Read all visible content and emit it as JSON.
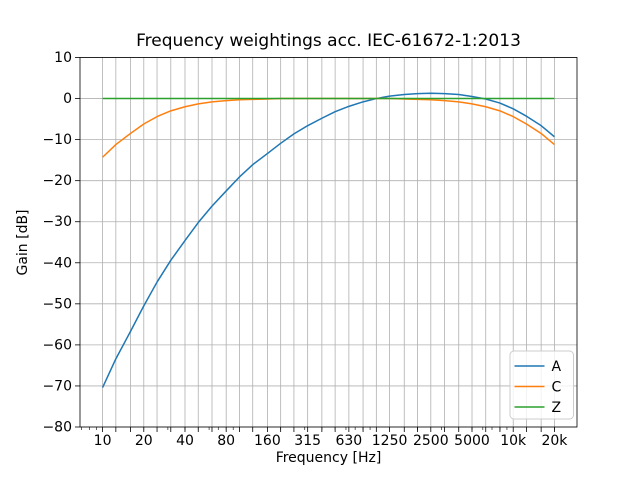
{
  "chart_data": {
    "type": "line",
    "title": "Frequency weightings acc. IEC-61672-1:2013",
    "xlabel": "Frequency [Hz]",
    "ylabel": "Gain [dB]",
    "x_scale": "log",
    "xlim_hz": [
      6.84,
      29245
    ],
    "ylim": [
      -80,
      10
    ],
    "grid": true,
    "legend_position": "lower right",
    "frequencies_hz": [
      10,
      12.5,
      16,
      20,
      25,
      31.5,
      40,
      50,
      63,
      80,
      100,
      125,
      160,
      200,
      250,
      315,
      400,
      500,
      630,
      800,
      1000,
      1250,
      1600,
      2000,
      2500,
      3150,
      4000,
      5000,
      6300,
      8000,
      10000,
      12500,
      16000,
      20000
    ],
    "series": [
      {
        "name": "A",
        "color": "#1f77b4",
        "values": [
          -70.4,
          -63.4,
          -56.7,
          -50.5,
          -44.7,
          -39.4,
          -34.6,
          -30.2,
          -26.2,
          -22.5,
          -19.1,
          -16.1,
          -13.4,
          -10.9,
          -8.6,
          -6.6,
          -4.8,
          -3.2,
          -1.9,
          -0.8,
          0.0,
          0.6,
          1.0,
          1.2,
          1.3,
          1.2,
          1.0,
          0.5,
          -0.1,
          -1.1,
          -2.5,
          -4.3,
          -6.6,
          -9.3
        ]
      },
      {
        "name": "C",
        "color": "#ff7f0e",
        "values": [
          -14.3,
          -11.2,
          -8.5,
          -6.2,
          -4.4,
          -3.0,
          -2.0,
          -1.3,
          -0.8,
          -0.5,
          -0.3,
          -0.2,
          -0.1,
          0.0,
          0.0,
          0.0,
          0.0,
          0.0,
          0.0,
          0.0,
          0.0,
          0.0,
          -0.1,
          -0.2,
          -0.3,
          -0.5,
          -0.8,
          -1.3,
          -2.0,
          -3.0,
          -4.4,
          -6.2,
          -8.5,
          -11.2
        ]
      },
      {
        "name": "Z",
        "color": "#2ca02c",
        "values": [
          0,
          0,
          0,
          0,
          0,
          0,
          0,
          0,
          0,
          0,
          0,
          0,
          0,
          0,
          0,
          0,
          0,
          0,
          0,
          0,
          0,
          0,
          0,
          0,
          0,
          0,
          0,
          0,
          0,
          0,
          0,
          0,
          0,
          0
        ]
      }
    ],
    "x_tick_freqs": [
      10,
      20,
      40,
      80,
      160,
      315,
      630,
      1250,
      2500,
      5000,
      10000,
      20000
    ],
    "x_tick_labels": [
      "10",
      "20",
      "40",
      "80",
      "160",
      "315",
      "630",
      "1250",
      "2500",
      "5000",
      "10k",
      "20k"
    ],
    "y_ticks": [
      10,
      0,
      -10,
      -20,
      -30,
      -40,
      -50,
      -60,
      -70,
      -80
    ],
    "colors": {
      "grid": "#b0b0b0",
      "axes": "#000000",
      "background": "#ffffff",
      "legend_edge": "#cccccc",
      "legend_face": "#ffffff"
    }
  }
}
